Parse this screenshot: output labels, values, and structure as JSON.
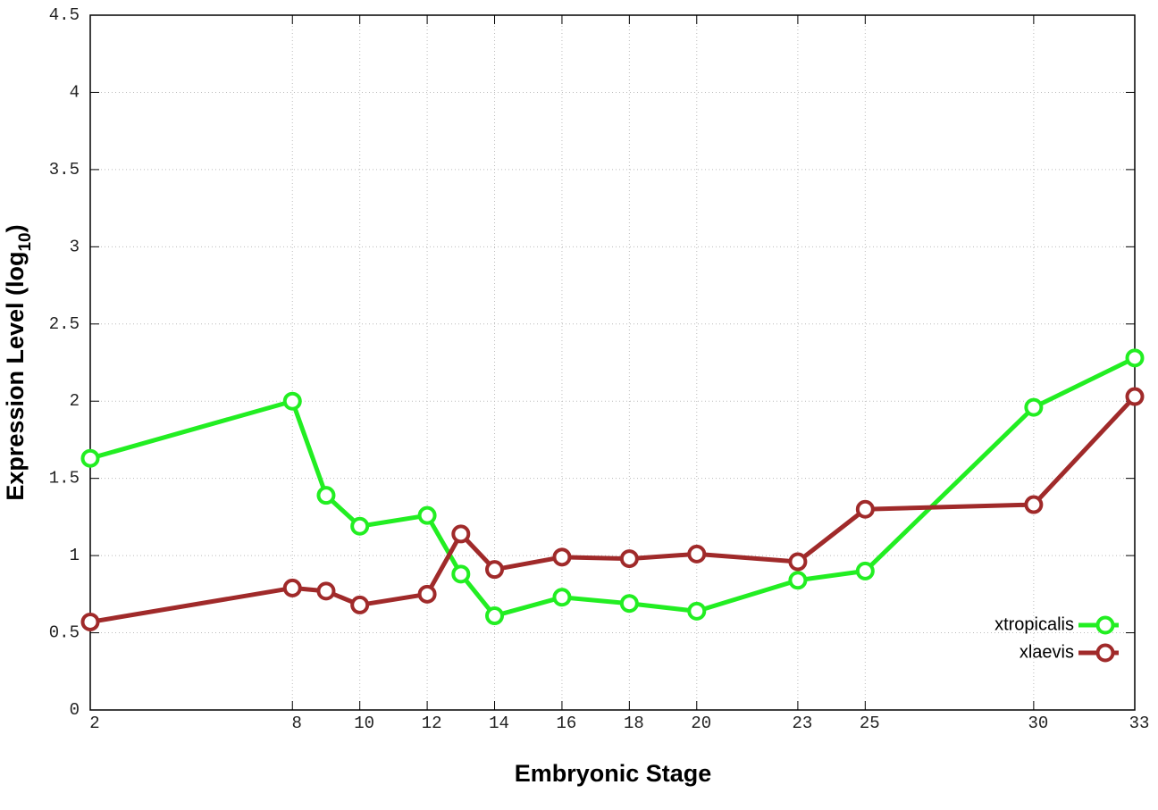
{
  "chart_data": {
    "type": "line",
    "x_label": "Embryonic Stage",
    "y_label": {
      "text": "Expression Level (log",
      "subscript": "10",
      "suffix": ")"
    },
    "x": [
      2,
      8,
      9,
      10,
      12,
      13,
      14,
      16,
      18,
      20,
      23,
      25,
      30,
      33
    ],
    "series": [
      {
        "name": "xtropicalis",
        "color": "#22ee22",
        "values": [
          1.63,
          2.0,
          1.39,
          1.19,
          1.26,
          0.88,
          0.61,
          0.73,
          0.69,
          0.64,
          0.84,
          0.9,
          1.96,
          2.28
        ]
      },
      {
        "name": "xlaevis",
        "color": "#a02a2a",
        "values": [
          0.57,
          0.79,
          0.77,
          0.68,
          0.75,
          1.14,
          0.91,
          0.99,
          0.98,
          1.01,
          0.96,
          1.3,
          1.33,
          2.03
        ]
      }
    ],
    "xlim": [
      2,
      33
    ],
    "xticks": [
      2,
      8,
      10,
      12,
      14,
      16,
      18,
      20,
      23,
      25,
      30,
      33
    ],
    "ylim": [
      0,
      4.5
    ],
    "yticks": [
      0,
      0.5,
      1,
      1.5,
      2,
      2.5,
      3,
      3.5,
      4,
      4.5
    ],
    "grid": true,
    "legend": "bottom-right"
  }
}
